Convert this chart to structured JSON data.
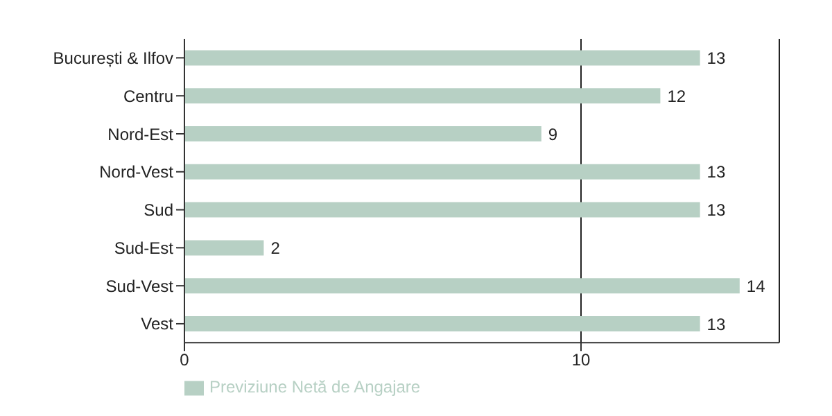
{
  "chart_data": {
    "type": "bar",
    "orientation": "horizontal",
    "categories": [
      "București & Ilfov",
      "Centru",
      "Nord-Est",
      "Nord-Vest",
      "Sud",
      "Sud-Est",
      "Sud-Vest",
      "Vest"
    ],
    "series": [
      {
        "name": "Previziune Netă de Angajare",
        "color": "#b7d0c4",
        "values": [
          13,
          12,
          9,
          13,
          13,
          2,
          14,
          13
        ]
      }
    ],
    "xlim": [
      0,
      15
    ],
    "xticks": [
      0,
      10
    ],
    "grid": "x",
    "legend": "bottom",
    "data_labels": true
  }
}
